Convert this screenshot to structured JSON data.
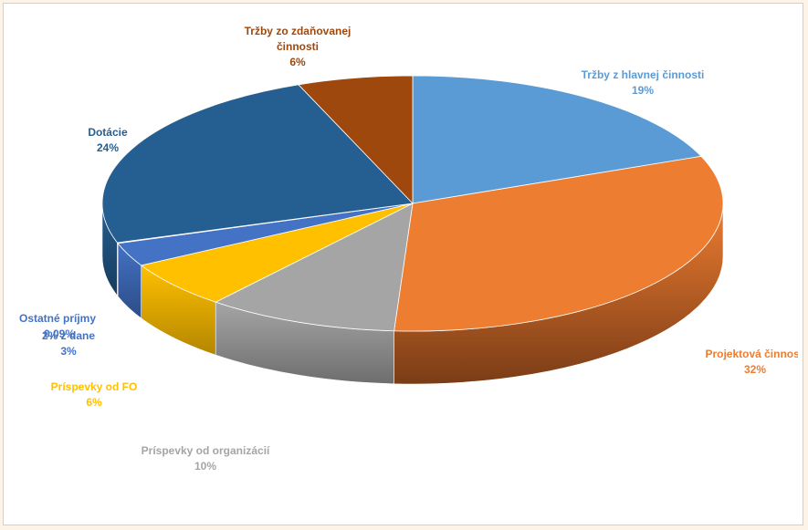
{
  "chart_data": {
    "type": "pie",
    "style": "3d",
    "slices": [
      {
        "label": "Tržby z hlavnej činnosti",
        "label_lines": [
          "Tržby z hlavnej činnosti"
        ],
        "pct_text": "19%",
        "value": 19,
        "color": "#5b9bd5",
        "dark": "#3d6f9e"
      },
      {
        "label": "Projektová činnosť",
        "label_lines": [
          "Projektová činnosť"
        ],
        "pct_text": "32%",
        "value": 32,
        "color": "#ed7d31",
        "dark": "#7a3c16"
      },
      {
        "label": "Príspevky od organizácií",
        "label_lines": [
          "Príspevky od organizácií"
        ],
        "pct_text": "10%",
        "value": 10,
        "color": "#a5a5a5",
        "dark": "#6e6e6e"
      },
      {
        "label": "Príspevky od FO",
        "label_lines": [
          "Príspevky od FO"
        ],
        "pct_text": "6%",
        "value": 6,
        "color": "#ffc000",
        "dark": "#b38600"
      },
      {
        "label": "2% z dane",
        "label_lines": [
          "2% z dane"
        ],
        "pct_text": "3%",
        "value": 3,
        "color": "#4472c4",
        "dark": "#2c4d87"
      },
      {
        "label": "Ostatné príjmy",
        "label_lines": [
          "Ostatné príjmy"
        ],
        "pct_text": "0,09%",
        "value": 0.09,
        "color": "#70ad47",
        "dark": "#4b7a2e"
      },
      {
        "label": "Dotácie",
        "label_lines": [
          "Dotácie"
        ],
        "pct_text": "24%",
        "value": 24,
        "color": "#255e91",
        "dark": "#173c5d"
      },
      {
        "label": "Tržby zo zdaňovanej činnosti",
        "label_lines": [
          "Tržby zo zdaňovanej",
          "činnosti"
        ],
        "pct_text": "6%",
        "value": 6,
        "color": "#9e480e",
        "dark": "#5e2a07"
      }
    ],
    "legend": "none",
    "title": ""
  }
}
